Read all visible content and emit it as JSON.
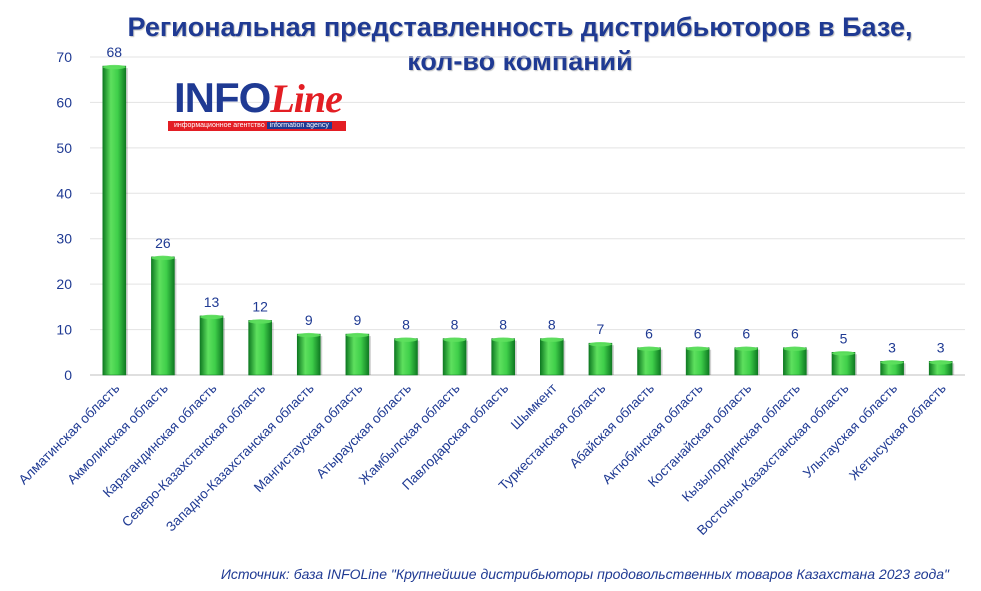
{
  "title": {
    "line1": "Региональная представленность дистрибьюторов в Базе,",
    "line2": "кол-во компаний"
  },
  "logo": {
    "word_left": "INFO",
    "word_right": "Line",
    "band_left": "информационное агентство",
    "band_right": "information agency"
  },
  "source": "Источник: база INFOLine \"Крупнейшие дистрибьюторы продовольственных товаров Казахстана 2023 года\"",
  "colors": {
    "bar_top": "#5ee05e",
    "bar_mid": "#1fb53a",
    "bar_dark": "#0f7a22",
    "axis_text": "#1f3a93",
    "title": "#1f3a93",
    "grid": "#e3e3e3"
  },
  "chart_data": {
    "type": "bar",
    "title": "Региональная представленность дистрибьюторов в Базе, кол-во компаний",
    "categories": [
      "Алматинская область",
      "Акмолинская область",
      "Карагандинская область",
      "Северо-Казахстанская область",
      "Западно-Казахстанская область",
      "Мангистауская область",
      "Атырауская область",
      "Жамбылская область",
      "Павлодарская область",
      "Шымкент",
      "Туркестанская область",
      "Абайская область",
      "Актюбинская область",
      "Костанайская область",
      "Кызылординская область",
      "Восточно-Казахстанская область",
      "Улытауская область",
      "Жетысуская область"
    ],
    "values": [
      68,
      26,
      13,
      12,
      9,
      9,
      8,
      8,
      8,
      8,
      7,
      6,
      6,
      6,
      6,
      5,
      3,
      3
    ],
    "ylim": [
      0,
      70
    ],
    "yticks": [
      0,
      10,
      20,
      30,
      40,
      50,
      60,
      70
    ],
    "grid": true,
    "data_labels": true,
    "legend": "none"
  }
}
